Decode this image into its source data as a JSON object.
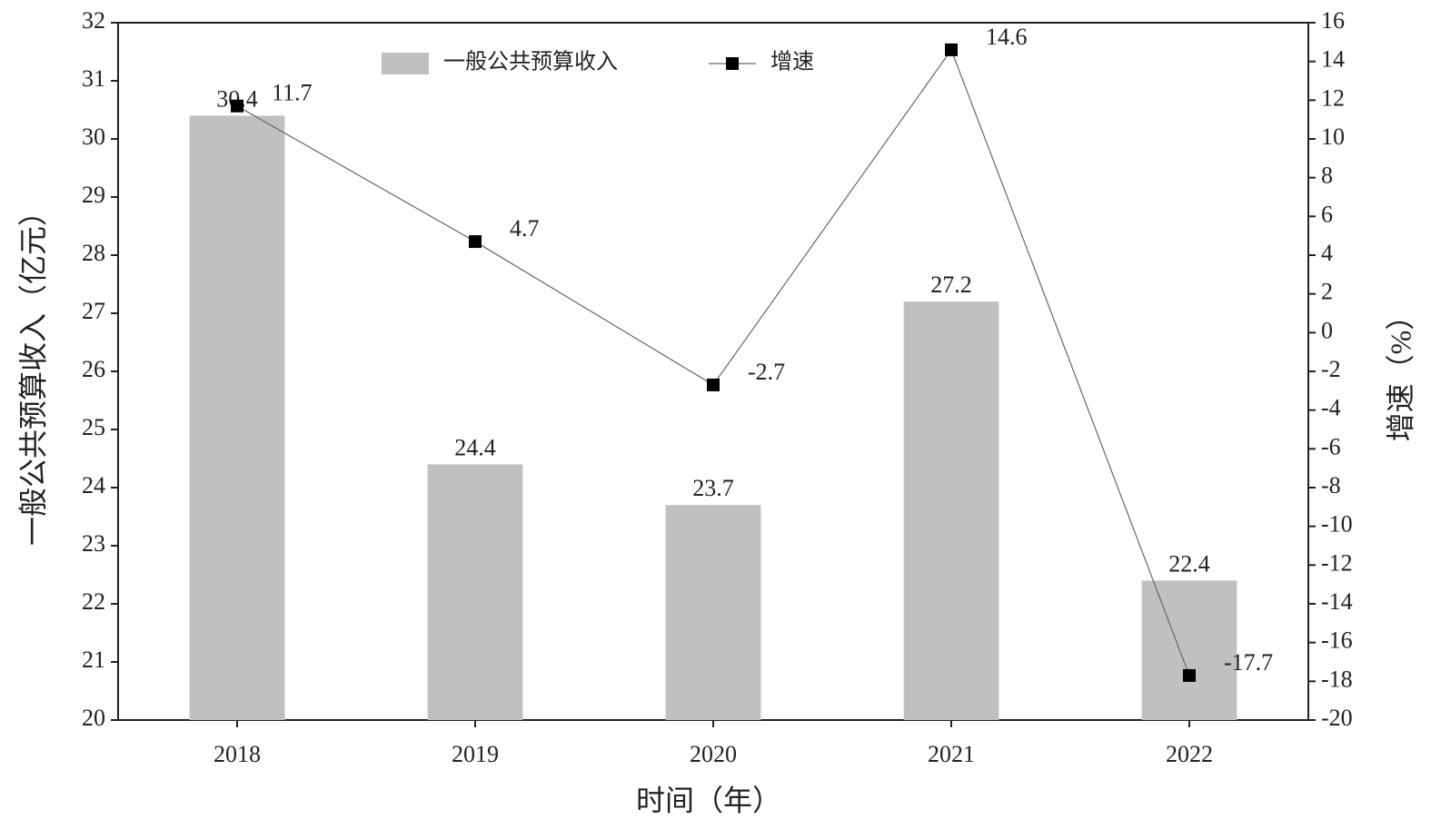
{
  "chart_data": {
    "type": "combo",
    "x_label": "时间（年）",
    "y_label": "一般公共预算收入（亿元）",
    "y2_label": "增速（%）",
    "categories": [
      "2018",
      "2019",
      "2020",
      "2021",
      "2022"
    ],
    "series": [
      {
        "name": "一般公共预算收入",
        "type": "bar",
        "color": "#c0c0c0",
        "values": [
          30.4,
          24.4,
          23.7,
          27.2,
          22.4
        ]
      },
      {
        "name": "增速",
        "type": "line",
        "axis": "y2",
        "color": "#000000",
        "values": [
          11.7,
          4.7,
          -2.7,
          14.6,
          -17.7
        ]
      }
    ],
    "ylim": [
      20,
      32
    ],
    "yticks": [
      20,
      21,
      22,
      23,
      24,
      25,
      26,
      27,
      28,
      29,
      30,
      31,
      32
    ],
    "y2lim": [
      -20,
      16
    ],
    "y2ticks": [
      -20,
      -18,
      -16,
      -14,
      -12,
      -10,
      -8,
      -6,
      -4,
      -2,
      0,
      2,
      4,
      6,
      8,
      10,
      12,
      14,
      16
    ],
    "grid": false,
    "legend": "top"
  }
}
